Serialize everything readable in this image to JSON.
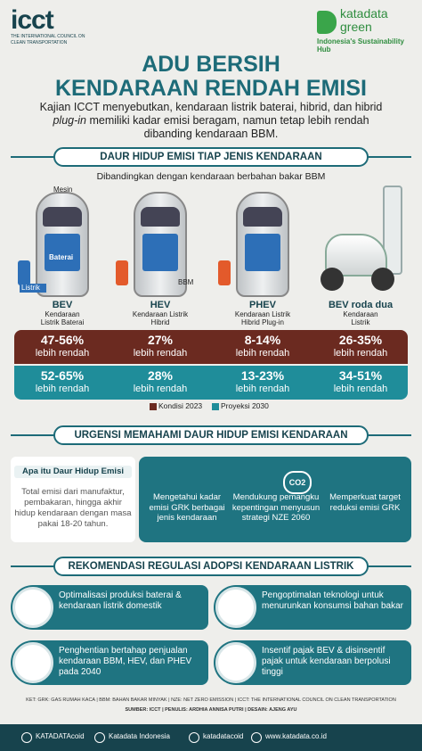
{
  "header": {
    "logo_left": "icct",
    "logo_left_sub": "THE INTERNATIONAL COUNCIL ON CLEAN TRANSPORTATION",
    "logo_right": "katadata green",
    "logo_right_sub": "Indonesia's Sustainability Hub"
  },
  "title": [
    "ADU BERSIH",
    "KENDARAAN RENDAH EMISI"
  ],
  "intro": [
    "Kajian ICCT menyebutkan, kendaraan listrik baterai, hibrid, dan hibrid ",
    "plug-in",
    " memiliki kadar emisi beragam, namun tetap lebih rendah dibanding kendaraan BBM."
  ],
  "section1": {
    "title": "DAUR HIDUP EMISI TIAP JENIS KENDARAAN",
    "subtitle": "Dibandingkan dengan kendaraan berbahan bakar BBM",
    "parts": {
      "engine": "Mesin",
      "battery": "Baterai",
      "electric": "Listrik",
      "fuel": "BBM"
    },
    "vehicles": [
      {
        "name": "BEV",
        "desc": [
          "Kendaraan",
          "Listrik Baterai"
        ],
        "y2023": "47-56%",
        "y2030": "52-65%"
      },
      {
        "name": "HEV",
        "desc": [
          "Kendaraan Listrik",
          "Hibrid"
        ],
        "y2023": "27%",
        "y2030": "28%"
      },
      {
        "name": "PHEV",
        "desc": [
          "Kendaraan Listrik",
          "Hibrid Plug-in"
        ],
        "y2023": "8-14%",
        "y2030": "13-23%"
      },
      {
        "name": "BEV roda dua",
        "desc": [
          "Kendaraan",
          "Listrik"
        ],
        "y2023": "26-35%",
        "y2030": "34-51%"
      }
    ],
    "lower": "lebih rendah",
    "legend": [
      "Kondisi 2023",
      "Proyeksi 2030"
    ]
  },
  "section2": {
    "title": "URGENSI MEMAHAMI DAUR HIDUP EMISI KENDARAAN",
    "box_title": "Apa itu Daur Hidup Emisi",
    "box_text": "Total emisi dari manufaktur, pembakaran, hingga akhir hidup kendaraan dengan masa pakai 18-20 tahun.",
    "icon_text": "CO2",
    "points": [
      "Mengetahui kadar emisi GRK berbagai jenis kendaraan",
      "Mendukung pemangku kepentingan menyusun strategi NZE 2060",
      "Memperkuat target reduksi emisi GRK"
    ]
  },
  "section3": {
    "title": "REKOMENDASI REGULASI ADOPSI KENDARAAN LISTRIK",
    "items": [
      "Optimalisasi produksi baterai & kendaraan listrik domestik",
      "Pengoptimalan teknologi untuk menurunkan konsumsi bahan bakar",
      "Penghentian bertahap penjualan kendaraan BBM, HEV, dan PHEV pada 2040",
      "Insentif pajak BEV & disinsentif pajak untuk kendaraan berpolusi tinggi"
    ]
  },
  "footer": {
    "note": "KET: GRK: GAS RUMAH KACA | BBM: BAHAN BAKAR MINYAK | NZE: NET ZERO EMISSION | ICCT: THE INTERNATIONAL COUNCIL ON CLEAN TRANSPORTATION",
    "credits": "SUMBER: ICCT | PENULIS: ARDHIA ANNISA PUTRI | DESAIN: AJENG AYU",
    "social": [
      "KATADATAcoid",
      "Katadata Indonesia",
      "katadatacoid",
      "www.katadata.co.id"
    ]
  }
}
